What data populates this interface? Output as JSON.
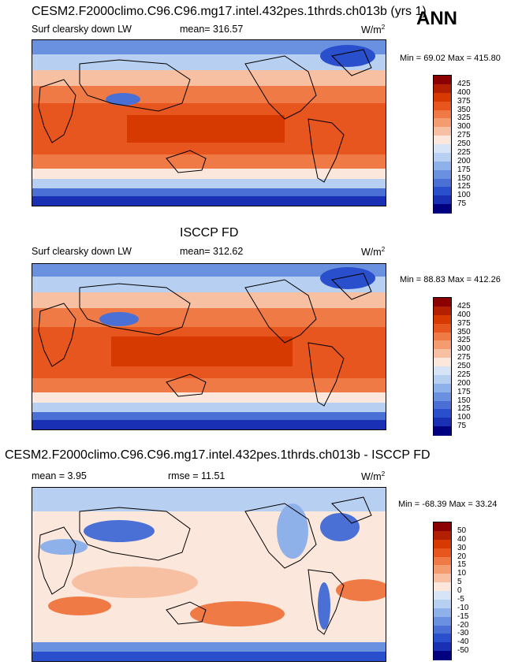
{
  "season_label": "ANN",
  "panels": [
    {
      "title": "CESM2.F2000climo.C96.C96.mg17.intel.432pes.1thrds.ch013b (yrs 1)",
      "variable": "Surf clearsky down LW",
      "stat_label": "mean= 316.57",
      "units": "W/m",
      "units_sup": "2",
      "minmax": "Min =  69.02 Max = 415.80",
      "levels": [
        "425",
        "400",
        "375",
        "350",
        "325",
        "300",
        "275",
        "250",
        "225",
        "200",
        "175",
        "150",
        "125",
        "100",
        "75"
      ],
      "colors": [
        "#8b0000",
        "#b22000",
        "#d63a00",
        "#e8561f",
        "#f07a45",
        "#f59b70",
        "#f8c0a2",
        "#fbe7dc",
        "#d6e4f5",
        "#b7cff0",
        "#8fb1ea",
        "#6a90e0",
        "#4a70d6",
        "#2a4fcc",
        "#1a30b4",
        "#000080"
      ]
    },
    {
      "title": "ISCCP FD",
      "variable": "Surf clearsky down LW",
      "stat_label": "mean= 312.62",
      "units": "W/m",
      "units_sup": "2",
      "minmax": "Min =  88.83 Max = 412.26",
      "levels": [
        "425",
        "400",
        "375",
        "350",
        "325",
        "300",
        "275",
        "250",
        "225",
        "200",
        "175",
        "150",
        "125",
        "100",
        "75"
      ],
      "colors": [
        "#8b0000",
        "#b22000",
        "#d63a00",
        "#e8561f",
        "#f07a45",
        "#f59b70",
        "#f8c0a2",
        "#fbe7dc",
        "#d6e4f5",
        "#b7cff0",
        "#8fb1ea",
        "#6a90e0",
        "#4a70d6",
        "#2a4fcc",
        "#1a30b4",
        "#000080"
      ]
    },
    {
      "title": "CESM2.F2000climo.C96.C96.mg17.intel.432pes.1thrds.ch013b - ISCCP FD",
      "variable": "mean =   3.95",
      "stat_label": "rmse =  11.51",
      "units": "W/m",
      "units_sup": "2",
      "minmax": "Min = -68.39 Max =  33.24",
      "levels": [
        "50",
        "40",
        "30",
        "20",
        "15",
        "10",
        "5",
        "0",
        "-5",
        "-10",
        "-15",
        "-20",
        "-30",
        "-40",
        "-50"
      ],
      "colors": [
        "#8b0000",
        "#b22000",
        "#d63a00",
        "#e8561f",
        "#f07a45",
        "#f59b70",
        "#f8c0a2",
        "#fbe7dc",
        "#d6e4f5",
        "#b7cff0",
        "#8fb1ea",
        "#6a90e0",
        "#4a70d6",
        "#2a4fcc",
        "#1a30b4",
        "#000080"
      ]
    }
  ]
}
